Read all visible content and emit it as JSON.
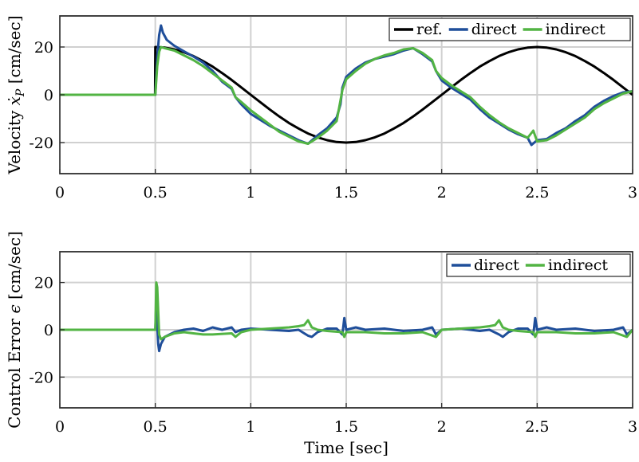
{
  "chart_data": [
    {
      "type": "line",
      "title": "",
      "xlabel": "",
      "ylabel": "Velocity ẋ_P [cm/sec]",
      "ylabel_parts": {
        "pre": "Velocity ",
        "var": "ẋ",
        "sub": "P",
        "post": " [cm/sec]"
      },
      "xlim": [
        0,
        3
      ],
      "ylim": [
        -33,
        33
      ],
      "xticks": [
        0,
        0.5,
        1,
        1.5,
        2,
        2.5,
        3
      ],
      "xtick_labels": [
        "0",
        "0.5",
        "1",
        "1.5",
        "2",
        "2.5",
        "3"
      ],
      "yticks": [
        -20,
        0,
        20
      ],
      "ytick_labels": [
        "-20",
        "0",
        "20"
      ],
      "grid": true,
      "legend_position": "top-right",
      "series": [
        {
          "name": "ref.",
          "color": "#000000",
          "x": [
            0,
            0.499,
            0.5,
            0.55,
            0.6,
            0.65,
            0.7,
            0.75,
            0.8,
            0.85,
            0.9,
            0.95,
            1.0,
            1.05,
            1.1,
            1.15,
            1.2,
            1.25,
            1.3,
            1.35,
            1.4,
            1.45,
            1.5,
            1.55,
            1.6,
            1.65,
            1.7,
            1.75,
            1.8,
            1.85,
            1.9,
            1.95,
            2.0,
            2.05,
            2.1,
            2.15,
            2.2,
            2.25,
            2.3,
            2.35,
            2.4,
            2.45,
            2.5,
            2.55,
            2.6,
            2.65,
            2.7,
            2.75,
            2.8,
            2.85,
            2.9,
            2.95,
            3.0
          ],
          "y": [
            0,
            0,
            20,
            19.75,
            19.0,
            17.8,
            16.2,
            14.1,
            11.8,
            9.1,
            6.2,
            3.1,
            0,
            -3.1,
            -6.2,
            -9.1,
            -11.8,
            -14.1,
            -16.2,
            -17.8,
            -19.0,
            -19.75,
            -20,
            -19.75,
            -19.0,
            -17.8,
            -16.2,
            -14.1,
            -11.8,
            -9.1,
            -6.2,
            -3.1,
            0,
            3.1,
            6.2,
            9.1,
            11.8,
            14.1,
            16.2,
            17.8,
            19.0,
            19.75,
            20,
            19.75,
            19.0,
            17.8,
            16.2,
            14.1,
            11.8,
            9.1,
            6.2,
            3.1,
            0
          ]
        },
        {
          "name": "direct",
          "color": "#1f4e9a",
          "x": [
            0,
            0.5,
            0.51,
            0.52,
            0.53,
            0.54,
            0.56,
            0.6,
            0.65,
            0.7,
            0.75,
            0.8,
            0.85,
            0.9,
            0.92,
            0.95,
            1.0,
            1.05,
            1.1,
            1.15,
            1.2,
            1.25,
            1.3,
            1.35,
            1.4,
            1.45,
            1.47,
            1.48,
            1.5,
            1.55,
            1.6,
            1.65,
            1.7,
            1.75,
            1.8,
            1.85,
            1.9,
            1.95,
            1.97,
            2.0,
            2.05,
            2.1,
            2.15,
            2.2,
            2.25,
            2.3,
            2.35,
            2.4,
            2.45,
            2.47,
            2.5,
            2.55,
            2.6,
            2.65,
            2.7,
            2.75,
            2.8,
            2.85,
            2.9,
            2.95,
            3.0
          ],
          "y": [
            0,
            0,
            16,
            25,
            29,
            26,
            23,
            20.5,
            18.2,
            16.0,
            13.5,
            10.0,
            5.5,
            2.5,
            -1,
            -4.0,
            -8.0,
            -10.5,
            -13.0,
            -15.0,
            -17.0,
            -19.0,
            -20.5,
            -17.0,
            -14.0,
            -9.5,
            -4,
            3,
            7.5,
            11.0,
            13.5,
            15.0,
            16.0,
            17.0,
            18.5,
            19.5,
            17.0,
            14.0,
            10,
            6.0,
            3.0,
            0.5,
            -2.0,
            -6.0,
            -9.5,
            -12.0,
            -14.5,
            -16.5,
            -18.0,
            -21,
            -19.0,
            -18.5,
            -16.0,
            -14.0,
            -11.0,
            -8.5,
            -5.0,
            -2.5,
            -0.5,
            1.0,
            1.5
          ]
        },
        {
          "name": "indirect",
          "color": "#52b443",
          "x": [
            0,
            0.5,
            0.51,
            0.52,
            0.53,
            0.55,
            0.6,
            0.65,
            0.7,
            0.75,
            0.8,
            0.85,
            0.9,
            0.92,
            0.95,
            1.0,
            1.05,
            1.1,
            1.15,
            1.2,
            1.25,
            1.3,
            1.35,
            1.4,
            1.45,
            1.48,
            1.5,
            1.55,
            1.6,
            1.65,
            1.7,
            1.75,
            1.8,
            1.85,
            1.9,
            1.95,
            1.97,
            2.0,
            2.05,
            2.1,
            2.15,
            2.2,
            2.25,
            2.3,
            2.35,
            2.4,
            2.45,
            2.48,
            2.5,
            2.55,
            2.6,
            2.65,
            2.7,
            2.75,
            2.8,
            2.85,
            2.9,
            2.95,
            3.0
          ],
          "y": [
            0,
            0,
            12,
            18,
            20,
            19.5,
            18.5,
            16.5,
            14.5,
            12.0,
            9.0,
            6.0,
            3.0,
            -1,
            -3.0,
            -6.5,
            -9.5,
            -12.5,
            -15.5,
            -17.5,
            -19.5,
            -20.5,
            -18.0,
            -15.0,
            -11.0,
            2,
            6.5,
            10.0,
            13.0,
            15.0,
            16.5,
            17.5,
            19.0,
            19.5,
            17.5,
            14.5,
            10,
            7.0,
            4.0,
            1.5,
            -1.0,
            -5.0,
            -8.5,
            -11.5,
            -14.0,
            -16.0,
            -18.0,
            -15,
            -19.5,
            -19.0,
            -17.0,
            -14.5,
            -12.0,
            -9.5,
            -6.0,
            -3.5,
            -1.5,
            0.5,
            1.5
          ]
        }
      ]
    },
    {
      "type": "line",
      "title": "",
      "xlabel": "Time [sec]",
      "ylabel": "Control Error ϵ [cm/sec]",
      "ylabel_parts": {
        "pre": "Control Error ",
        "var": "ϵ",
        "sub": "",
        "post": " [cm/sec]"
      },
      "xlim": [
        0,
        3
      ],
      "ylim": [
        -33,
        33
      ],
      "xticks": [
        0,
        0.5,
        1,
        1.5,
        2,
        2.5,
        3
      ],
      "xtick_labels": [
        "0",
        "0.5",
        "1",
        "1.5",
        "2",
        "2.5",
        "3"
      ],
      "yticks": [
        -20,
        0,
        20
      ],
      "ytick_labels": [
        "-20",
        "0",
        "20"
      ],
      "grid": true,
      "legend_position": "top-right",
      "series": [
        {
          "name": "direct",
          "color": "#1f4e9a",
          "x": [
            0,
            0.5,
            0.505,
            0.51,
            0.515,
            0.52,
            0.53,
            0.55,
            0.6,
            0.65,
            0.7,
            0.75,
            0.8,
            0.85,
            0.9,
            0.92,
            0.95,
            1.0,
            1.1,
            1.2,
            1.25,
            1.3,
            1.32,
            1.35,
            1.4,
            1.45,
            1.48,
            1.49,
            1.5,
            1.55,
            1.6,
            1.7,
            1.8,
            1.9,
            1.95,
            1.97,
            2.0,
            2.1,
            2.2,
            2.25,
            2.3,
            2.32,
            2.35,
            2.4,
            2.45,
            2.48,
            2.49,
            2.5,
            2.55,
            2.6,
            2.7,
            2.8,
            2.9,
            2.95,
            2.97,
            3.0
          ],
          "y": [
            0,
            0,
            12,
            2,
            -6,
            -9,
            -6,
            -3,
            -1,
            0,
            0.5,
            -0.5,
            1,
            0,
            1,
            -1,
            0,
            0.5,
            0,
            -0.5,
            0,
            -2.5,
            -3,
            -1,
            0.5,
            0.5,
            -2,
            5,
            0,
            1,
            0,
            0.5,
            -0.5,
            0,
            1,
            -2,
            0,
            0.5,
            -0.5,
            0,
            -2,
            -3,
            -1,
            0.5,
            0.5,
            -2,
            5,
            0,
            1,
            0,
            0.5,
            -0.5,
            0,
            1,
            -2,
            0
          ]
        },
        {
          "name": "indirect",
          "color": "#52b443",
          "x": [
            0,
            0.5,
            0.505,
            0.51,
            0.515,
            0.52,
            0.53,
            0.55,
            0.6,
            0.65,
            0.7,
            0.75,
            0.8,
            0.9,
            0.92,
            0.95,
            1.0,
            1.1,
            1.2,
            1.25,
            1.28,
            1.3,
            1.32,
            1.35,
            1.4,
            1.48,
            1.49,
            1.5,
            1.6,
            1.7,
            1.8,
            1.9,
            1.97,
            2.0,
            2.1,
            2.2,
            2.25,
            2.28,
            2.3,
            2.32,
            2.35,
            2.4,
            2.48,
            2.49,
            2.5,
            2.6,
            2.7,
            2.8,
            2.9,
            2.97,
            3.0
          ],
          "y": [
            0,
            0,
            20,
            18,
            8,
            -2,
            -4,
            -3,
            -1.5,
            -1,
            -1.5,
            -2,
            -2,
            -1.5,
            -3,
            -1,
            0,
            0.5,
            1,
            1.5,
            2,
            4,
            1,
            0,
            -0.5,
            -1,
            -3,
            -1,
            -1,
            -1.5,
            -1.5,
            -1,
            -3,
            0,
            0.5,
            1,
            1.5,
            2,
            4,
            1,
            0,
            -0.5,
            -1,
            -3,
            -1,
            -1,
            -1.5,
            -1.5,
            -1,
            -3,
            0
          ]
        }
      ]
    }
  ]
}
